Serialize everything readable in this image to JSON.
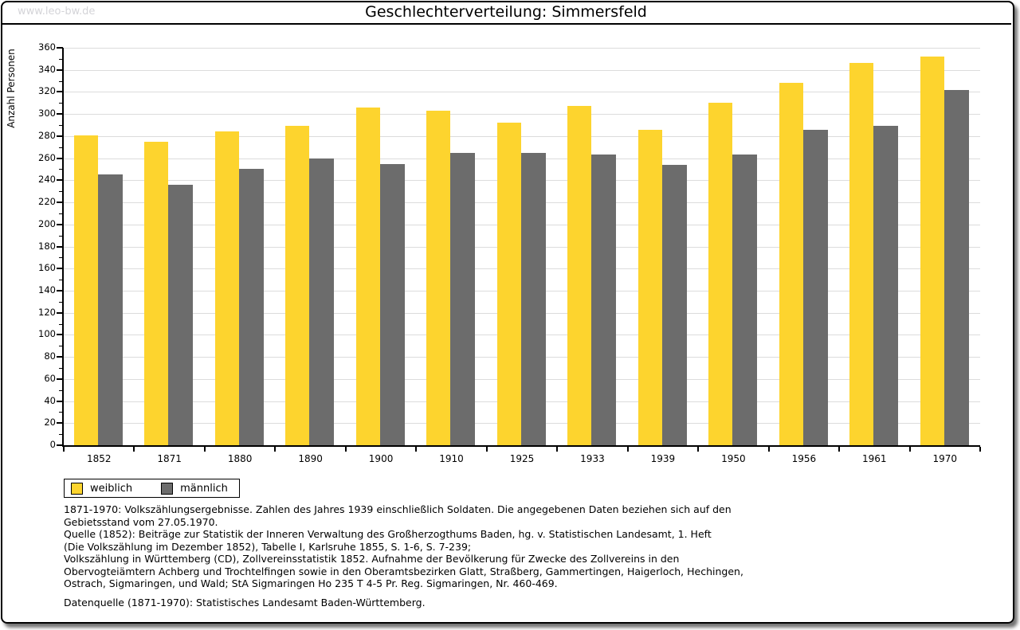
{
  "watermark": "www.leo-bw.de",
  "chart_data": {
    "type": "bar",
    "title": "Geschlechterverteilung: Simmersfeld",
    "xlabel": "",
    "ylabel": "Anzahl Personen",
    "ylim": [
      0,
      360
    ],
    "ytick_step": 20,
    "ytick_minor_step": 10,
    "grid": true,
    "legend_position": "bottom-left",
    "categories": [
      "1852",
      "1871",
      "1880",
      "1890",
      "1900",
      "1910",
      "1925",
      "1933",
      "1939",
      "1950",
      "1956",
      "1961",
      "1970"
    ],
    "series": [
      {
        "name": "weiblich",
        "color": "#fdd42e",
        "values": [
          281,
          275,
          284,
          289,
          306,
          303,
          292,
          307,
          286,
          310,
          328,
          346,
          352
        ]
      },
      {
        "name": "männlich",
        "color": "#6c6c6c",
        "values": [
          245,
          236,
          250,
          260,
          255,
          265,
          265,
          263,
          254,
          263,
          286,
          289,
          322
        ]
      }
    ]
  },
  "colors": {
    "grid": "#dcdcdc",
    "axis": "#000000",
    "watermark": "#d4d4d8"
  },
  "footer": {
    "lines": [
      "1871-1970: Volkszählungsergebnisse. Zahlen des Jahres 1939 einschließlich Soldaten. Die angegebenen Daten beziehen sich auf den",
      "Gebietsstand vom 27.05.1970.",
      "Quelle (1852): Beiträge zur Statistik der Inneren Verwaltung des Großherzogthums Baden, hg. v. Statistischen Landesamt, 1. Heft",
      "(Die Volkszählung im Dezember 1852), Tabelle I, Karlsruhe 1855, S. 1-6, S. 7-239;",
      "Volkszählung in Württemberg (CD), Zollvereinsstatistik 1852. Aufnahme der Bevölkerung für Zwecke des Zollvereins in den",
      "Obervogteiämtern Achberg und Trochtelfingen sowie in den Oberamtsbezirken Glatt, Straßberg, Gammertingen, Haigerloch, Hechingen,",
      "Ostrach, Sigmaringen, und Wald; StA Sigmaringen Ho 235 T 4-5 Pr. Reg. Sigmaringen, Nr. 460-469."
    ],
    "datasource": "Datenquelle (1871-1970): Statistisches Landesamt Baden-Württemberg."
  }
}
